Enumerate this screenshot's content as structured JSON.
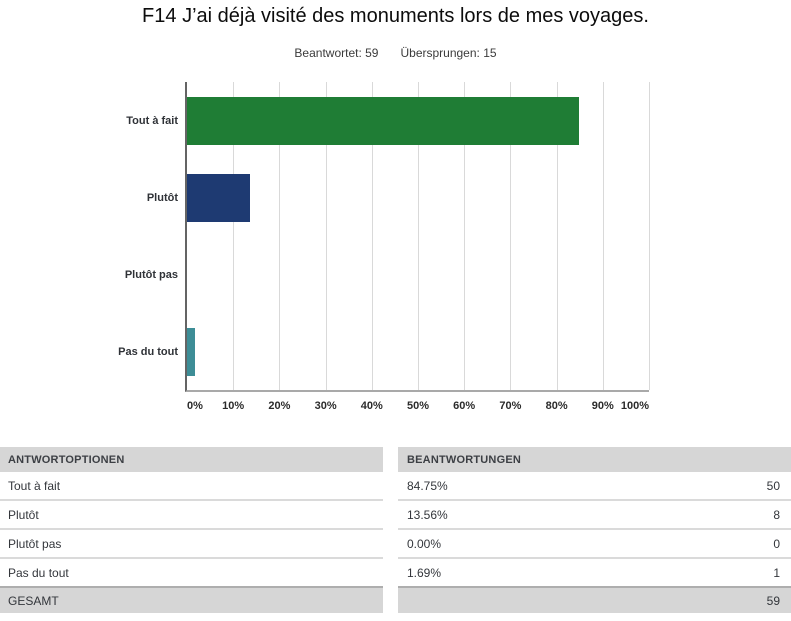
{
  "title": "F14 J’ai déjà visité des monuments lors de mes voyages.",
  "stats": {
    "answered": "Beantwortet: 59",
    "skipped": "Übersprungen: 15"
  },
  "chart_data": {
    "type": "bar",
    "orientation": "horizontal",
    "title": "F14 J’ai déjà visité des monuments lors de mes voyages.",
    "categories": [
      "Tout à fait",
      "Plutôt",
      "Plutôt pas",
      "Pas du tout"
    ],
    "values_percent": [
      84.75,
      13.56,
      0.0,
      1.69
    ],
    "counts": [
      50,
      8,
      0,
      1
    ],
    "bar_colors": [
      "#1f7d35",
      "#1e3a72",
      null,
      "#3d8d96"
    ],
    "x_ticks": [
      "0%",
      "10%",
      "20%",
      "30%",
      "40%",
      "50%",
      "60%",
      "70%",
      "80%",
      "90%",
      "100%"
    ],
    "xlim": [
      0,
      100
    ],
    "grid": true,
    "legend": false
  },
  "table": {
    "headers": [
      "ANTWORTOPTIONEN",
      "BEANTWORTUNGEN"
    ],
    "rows": [
      {
        "option": "Tout à fait",
        "percent": "84.75%",
        "count": "50"
      },
      {
        "option": "Plutôt",
        "percent": "13.56%",
        "count": "8"
      },
      {
        "option": "Plutôt pas",
        "percent": "0.00%",
        "count": "0"
      },
      {
        "option": "Pas du tout",
        "percent": "1.69%",
        "count": "1"
      }
    ],
    "total_label": "GESAMT",
    "total_count": "59"
  },
  "colors": {
    "green_bar": "#1f7d35",
    "navy_bar": "#1e3a72",
    "teal_bar": "#3d8d96",
    "gridline": "#d9d9d9",
    "axis_left": "#646464",
    "axis_bottom": "#a9a9a9",
    "table_header_bg": "#d6d6d6",
    "row_divider": "#dadada",
    "total_divider": "#aeaeae"
  }
}
